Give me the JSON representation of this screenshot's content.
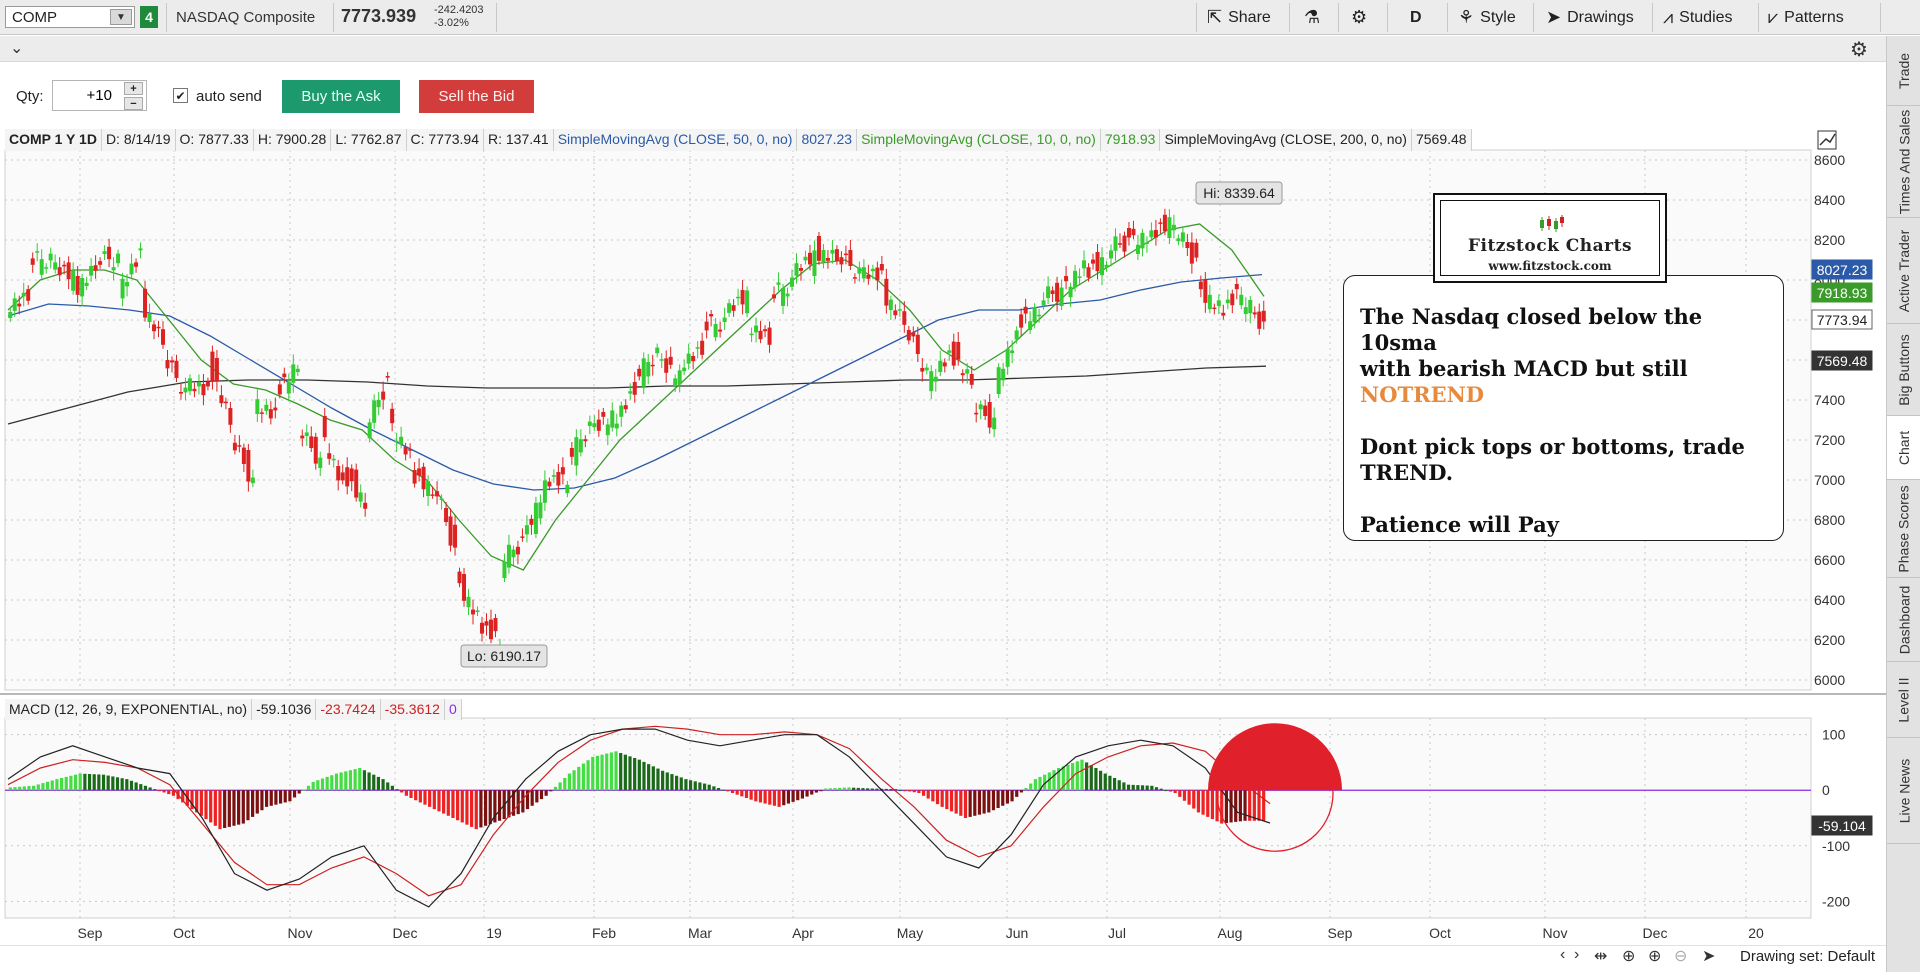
{
  "toolbar": {
    "symbol": "COMP",
    "link_badge": "4",
    "company": "NASDAQ Composite",
    "price": "7773.939",
    "change_abs": "-242.4203",
    "change_pct": "-3.02%",
    "share_label": "Share",
    "aggregation": "D",
    "style_label": "Style",
    "drawings_label": "Drawings",
    "studies_label": "Studies",
    "patterns_label": "Patterns"
  },
  "order": {
    "qty_label": "Qty:",
    "qty_value": "+10",
    "auto_send_label": "auto send",
    "auto_send_checked": true,
    "buy_label": "Buy the Ask",
    "sell_label": "Sell the Bid"
  },
  "study_header": {
    "title": "COMP 1 Y 1D",
    "date": "D: 8/14/19",
    "open": "O: 7877.33",
    "high": "H: 7900.28",
    "low": "L: 7762.87",
    "close": "C: 7773.94",
    "range": "R: 137.41",
    "sma50_label": "SimpleMovingAvg (CLOSE, 50, 0, no)",
    "sma50_value": "8027.23",
    "sma10_label": "SimpleMovingAvg (CLOSE, 10, 0, no)",
    "sma10_value": "7918.93",
    "sma200_label": "SimpleMovingAvg (CLOSE, 200, 0, no)",
    "sma200_value": "7569.48"
  },
  "macd_header": {
    "label": "MACD (12, 26, 9, EXPONENTIAL, no)",
    "value": "-59.1036",
    "avg": "-23.7424",
    "diff": "-35.3612",
    "zero": "0"
  },
  "annotation": {
    "line1": "The Nasdaq closed below the 10sma",
    "line2": "with bearish MACD but still",
    "line3": "NOTREND",
    "line4": "Dont pick tops or bottoms, trade",
    "line5": "TREND.",
    "line6": "Patience will Pay"
  },
  "logo": {
    "title": "Fitzstock Charts",
    "url": "www.fitzstock.com"
  },
  "side_tabs": [
    "Trade",
    "Times And Sales",
    "Active Trader",
    "Big Buttons",
    "Chart",
    "Phase Scores",
    "Dashboard",
    "Level II",
    "Live News"
  ],
  "bottom": {
    "drawing_set": "Drawing set: Default"
  },
  "colors": {
    "up": "#33cc33",
    "down": "#dd2222",
    "sma50": "#2a5aa8",
    "sma10": "#3a9a2a",
    "sma200": "#333333",
    "macd_line": "#222222",
    "macd_avg": "#cc2222",
    "zero_line": "#8a2be2",
    "circle": "#e0202a"
  },
  "chart_data": {
    "type": "candlestick",
    "price_axis": {
      "ticks": [
        "8600",
        "8400",
        "8200",
        "8000",
        "7800",
        "7600",
        "7400",
        "7200",
        "7000",
        "6800",
        "6600",
        "6400",
        "6200",
        "6000"
      ],
      "range": [
        5950,
        8650
      ]
    },
    "macd_axis": {
      "ticks": [
        "100",
        "0",
        "-100",
        "-200"
      ],
      "range": [
        -230,
        130
      ]
    },
    "time_labels": [
      "Sep",
      "Oct",
      "Nov",
      "Dec",
      "19",
      "Feb",
      "Mar",
      "Apr",
      "May",
      "Jun",
      "Jul",
      "Aug",
      "Sep",
      "Oct",
      "Nov",
      "Dec",
      "20"
    ],
    "price_labels": {
      "sma50": "8027.23",
      "sma10": "7918.93",
      "close": "7773.94",
      "sma200": "7569.48",
      "macd": "-59.104"
    },
    "high_label": "Hi: 8339.64",
    "low_label": "Lo: 6190.17",
    "price_path": [
      [
        7880,
        7920
      ],
      [
        8080,
        8120
      ],
      [
        8080,
        8000
      ],
      [
        7950,
        8070
      ],
      [
        8080,
        8120
      ],
      [
        7950,
        8110
      ],
      [
        7900,
        7700
      ],
      [
        7600,
        7450
      ],
      [
        7500,
        7420
      ],
      [
        7600,
        7300
      ],
      [
        7200,
        7000
      ],
      [
        7400,
        7300
      ],
      [
        7450,
        7580
      ],
      [
        7250,
        7100
      ],
      [
        7250,
        6950
      ],
      [
        7050,
        6880
      ],
      [
        7250,
        7500
      ],
      [
        7300,
        7100
      ],
      [
        7050,
        6950
      ],
      [
        7000,
        6650
      ],
      [
        6500,
        6300
      ],
      [
        6300,
        6200
      ],
      [
        6580,
        6700
      ],
      [
        6700,
        6950
      ],
      [
        7020,
        7000
      ],
      [
        7090,
        7280
      ],
      [
        7250,
        7300
      ],
      [
        7300,
        7450
      ],
      [
        7500,
        7650
      ],
      [
        7600,
        7500
      ],
      [
        7600,
        7650
      ],
      [
        7750,
        7800
      ],
      [
        7850,
        7900
      ],
      [
        7800,
        7700
      ],
      [
        7900,
        8000
      ],
      [
        8050,
        8100
      ],
      [
        8150,
        8120
      ],
      [
        8100,
        8050
      ],
      [
        8050,
        8000
      ],
      [
        7950,
        7800
      ],
      [
        7750,
        7550
      ],
      [
        7500,
        7600
      ],
      [
        7650,
        7500
      ],
      [
        7350,
        7300
      ],
      [
        7500,
        7700
      ],
      [
        7800,
        7850
      ],
      [
        7900,
        7950
      ],
      [
        7950,
        8050
      ],
      [
        8050,
        8100
      ],
      [
        8150,
        8200
      ],
      [
        8200,
        8200
      ],
      [
        8250,
        8300
      ],
      [
        8250,
        8100
      ],
      [
        7950,
        7850
      ],
      [
        7850,
        7950
      ],
      [
        7900,
        7780
      ]
    ],
    "sma50_path": [
      7820,
      7880,
      7870,
      7850,
      7820,
      7720,
      7600,
      7480,
      7360,
      7250,
      7150,
      7050,
      6980,
      6950,
      6960,
      7010,
      7100,
      7200,
      7300,
      7400,
      7500,
      7600,
      7700,
      7800,
      7850,
      7850,
      7880,
      7900,
      7950,
      7990,
      8010,
      8027
    ],
    "sma10_path": [
      7850,
      8000,
      8050,
      8050,
      8000,
      7800,
      7600,
      7480,
      7450,
      7380,
      7300,
      7250,
      7100,
      7000,
      6800,
      6620,
      6550,
      6800,
      7000,
      7200,
      7350,
      7500,
      7650,
      7800,
      7950,
      8080,
      8100,
      8000,
      7850,
      7650,
      7550,
      7650,
      7800,
      7950,
      8050,
      8150,
      8250,
      8280,
      8150,
      7918
    ],
    "sma200_path": [
      7280,
      7360,
      7440,
      7490,
      7500,
      7500,
      7490,
      7470,
      7460,
      7460,
      7460,
      7470,
      7470,
      7480,
      7490,
      7500,
      7500,
      7510,
      7520,
      7540,
      7560,
      7569
    ],
    "macd_hist": [
      5,
      8,
      20,
      30,
      28,
      20,
      5,
      -10,
      -40,
      -70,
      -60,
      -30,
      -20,
      15,
      30,
      40,
      20,
      -10,
      -30,
      -50,
      -70,
      -55,
      -40,
      -10,
      30,
      60,
      70,
      55,
      35,
      20,
      10,
      -5,
      -20,
      -30,
      -15,
      3,
      5,
      3,
      2,
      -5,
      -30,
      -50,
      -40,
      -20,
      20,
      40,
      55,
      30,
      10,
      8,
      -5,
      -40,
      -60,
      -55
    ],
    "macd_line": [
      20,
      60,
      80,
      60,
      40,
      30,
      -50,
      -150,
      -180,
      -160,
      -120,
      -100,
      -180,
      -210,
      -150,
      -50,
      20,
      70,
      100,
      110,
      110,
      90,
      80,
      90,
      100,
      100,
      60,
      0,
      -60,
      -120,
      -140,
      -80,
      10,
      60,
      80,
      90,
      80,
      40,
      -40,
      -59
    ],
    "macd_avg": [
      10,
      40,
      55,
      50,
      40,
      10,
      -60,
      -130,
      -170,
      -170,
      -140,
      -120,
      -150,
      -190,
      -170,
      -80,
      -10,
      50,
      90,
      110,
      115,
      110,
      100,
      100,
      105,
      100,
      75,
      20,
      -30,
      -90,
      -120,
      -100,
      -30,
      30,
      60,
      80,
      85,
      70,
      20,
      -24
    ]
  }
}
